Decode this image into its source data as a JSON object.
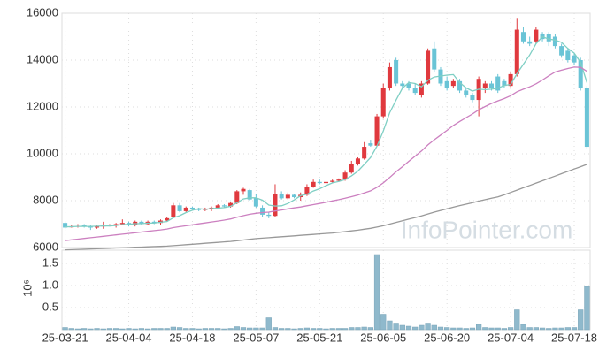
{
  "chart_data": {
    "type": "candlestick",
    "watermark": "InfoPointer.com",
    "grid": true,
    "up_color": "#e0393e",
    "down_color": "#6ac4d6",
    "categories": [
      "25-03-21",
      null,
      null,
      null,
      null,
      null,
      null,
      null,
      null,
      null,
      "25-04-04",
      null,
      null,
      null,
      null,
      null,
      null,
      null,
      null,
      null,
      "25-04-18",
      null,
      null,
      null,
      null,
      null,
      null,
      null,
      null,
      null,
      "25-05-07",
      null,
      null,
      null,
      null,
      null,
      null,
      null,
      null,
      null,
      "25-05-21",
      null,
      null,
      null,
      null,
      null,
      null,
      null,
      null,
      null,
      "25-06-05",
      null,
      null,
      null,
      null,
      null,
      null,
      null,
      null,
      null,
      "25-06-20",
      null,
      null,
      null,
      null,
      null,
      null,
      null,
      null,
      null,
      "25-07-04",
      null,
      null,
      null,
      null,
      null,
      null,
      null,
      null,
      null,
      "25-07-18",
      null,
      null
    ],
    "open": [
      7050,
      6900,
      6950,
      6980,
      6900,
      6850,
      6900,
      6950,
      6950,
      7000,
      7050,
      6950,
      7100,
      7000,
      7100,
      7050,
      7150,
      7300,
      7800,
      7550,
      7700,
      7650,
      7600,
      7650,
      7700,
      7800,
      7750,
      7900,
      8400,
      8450,
      8100,
      7700,
      7400,
      7350,
      8300,
      8100,
      8250,
      8150,
      8250,
      8600,
      8800,
      8750,
      8800,
      8850,
      8900,
      9200,
      9550,
      9800,
      10450,
      10350,
      11600,
      12800,
      14000,
      13000,
      13000,
      12800,
      12500,
      13000,
      14500,
      13600,
      13100,
      12900,
      13100,
      12700,
      12500,
      12300,
      12800,
      13000,
      13300,
      13100,
      12900,
      13400,
      15200,
      14800,
      14800,
      15100,
      15100,
      15000,
      14600,
      14400,
      14200,
      14000,
      12800
    ],
    "high": [
      7100,
      6950,
      7000,
      7000,
      6950,
      6950,
      7100,
      7000,
      7050,
      7200,
      7100,
      7150,
      7150,
      7150,
      7150,
      7200,
      7300,
      7900,
      7900,
      7750,
      7750,
      7700,
      7700,
      7750,
      7850,
      7850,
      7950,
      8450,
      8550,
      8500,
      8300,
      7800,
      7500,
      8700,
      8400,
      8350,
      8300,
      8350,
      8700,
      8900,
      8900,
      8850,
      8900,
      8950,
      9300,
      9700,
      9850,
      10500,
      10600,
      11700,
      13000,
      13900,
      14100,
      13100,
      13100,
      13000,
      13100,
      14500,
      14800,
      13700,
      13300,
      13200,
      13200,
      12800,
      12600,
      13300,
      13100,
      13100,
      13400,
      13200,
      13500,
      15800,
      15400,
      15000,
      15400,
      15200,
      15200,
      15100,
      14700,
      14500,
      14300,
      14100,
      12900
    ],
    "low": [
      6800,
      6850,
      6850,
      6850,
      6750,
      6800,
      6800,
      6900,
      6850,
      6950,
      6900,
      6900,
      6950,
      6950,
      7000,
      6950,
      7100,
      7250,
      7500,
      7500,
      7600,
      7550,
      7550,
      7550,
      7650,
      7700,
      7700,
      7850,
      8250,
      8000,
      7700,
      7300,
      7250,
      7300,
      8050,
      8050,
      8100,
      8000,
      8200,
      8550,
      8700,
      8700,
      8750,
      8800,
      8850,
      9150,
      9500,
      9750,
      10300,
      10300,
      11500,
      12700,
      12900,
      12800,
      12700,
      12500,
      12400,
      12950,
      13500,
      12900,
      12700,
      12800,
      12600,
      12400,
      12200,
      11600,
      12600,
      12700,
      12600,
      12800,
      12850,
      13300,
      14700,
      14600,
      14700,
      14800,
      14600,
      14500,
      14100,
      13900,
      13800,
      12700,
      10200
    ],
    "close": [
      6850,
      6900,
      6980,
      6900,
      6850,
      6900,
      6950,
      6980,
      7000,
      7050,
      6950,
      7100,
      7000,
      7100,
      7050,
      7150,
      7250,
      7800,
      7550,
      7700,
      7650,
      7600,
      7650,
      7700,
      7800,
      7750,
      7900,
      8400,
      8500,
      8050,
      7750,
      7400,
      7350,
      8300,
      8100,
      8250,
      8150,
      8250,
      8600,
      8800,
      8750,
      8800,
      8850,
      8900,
      9200,
      9550,
      9800,
      10300,
      10350,
      11600,
      12800,
      13700,
      13000,
      12900,
      12800,
      12600,
      13000,
      14400,
      13600,
      13000,
      12800,
      13100,
      12700,
      12500,
      12300,
      13200,
      13000,
      12800,
      12700,
      12900,
      13400,
      15300,
      14800,
      14700,
      15300,
      14900,
      14800,
      14600,
      14200,
      14000,
      13900,
      12800,
      10300
    ],
    "ylim": [
      6000,
      16000
    ],
    "yticks": [
      6000,
      8000,
      10000,
      12000,
      14000,
      16000
    ],
    "series": [
      {
        "color": "#7fcfc4",
        "values": [
          6880,
          6890,
          6900,
          6900,
          6900,
          6910,
          6920,
          6920,
          6940,
          6980,
          6990,
          7020,
          7020,
          7040,
          7040,
          7080,
          7110,
          7270,
          7360,
          7490,
          7590,
          7660,
          7630,
          7660,
          7680,
          7700,
          7760,
          7910,
          8070,
          8120,
          8120,
          8020,
          7810,
          7770,
          7780,
          7880,
          8030,
          8210,
          8270,
          8410,
          8510,
          8640,
          8760,
          8820,
          8900,
          9060,
          9260,
          9550,
          9840,
          10320,
          10970,
          11750,
          12290,
          12800,
          13040,
          13000,
          12860,
          13140,
          13280,
          13320,
          13360,
          13380,
          13040,
          12820,
          12680,
          12760,
          12740,
          12760,
          12800,
          12920,
          12960,
          13420,
          13820,
          14220,
          14700,
          15000,
          14900,
          14860,
          14760,
          14500,
          14300,
          13900,
          13040
        ]
      },
      {
        "color": "#cc80c0",
        "values": [
          6300,
          6330,
          6360,
          6390,
          6420,
          6450,
          6480,
          6510,
          6540,
          6570,
          6600,
          6630,
          6660,
          6690,
          6720,
          6750,
          6790,
          6850,
          6890,
          6930,
          6970,
          7010,
          7050,
          7090,
          7130,
          7170,
          7220,
          7290,
          7360,
          7420,
          7460,
          7490,
          7510,
          7560,
          7600,
          7650,
          7690,
          7730,
          7780,
          7830,
          7880,
          7930,
          7990,
          8040,
          8100,
          8170,
          8240,
          8330,
          8420,
          8570,
          8760,
          8990,
          9230,
          9450,
          9680,
          9900,
          10120,
          10380,
          10600,
          10800,
          11000,
          11210,
          11380,
          11540,
          11700,
          11880,
          12020,
          12150,
          12260,
          12360,
          12480,
          12650,
          12760,
          12860,
          12990,
          13150,
          13330,
          13490,
          13570,
          13640,
          13700,
          13690,
          13520
        ]
      },
      {
        "color": "#999999",
        "values": [
          5900,
          5910,
          5920,
          5930,
          5940,
          5950,
          5960,
          5970,
          5980,
          5990,
          6000,
          6010,
          6020,
          6030,
          6040,
          6050,
          6060,
          6080,
          6100,
          6120,
          6140,
          6160,
          6180,
          6200,
          6220,
          6240,
          6260,
          6290,
          6320,
          6350,
          6380,
          6400,
          6420,
          6440,
          6460,
          6480,
          6500,
          6520,
          6540,
          6560,
          6580,
          6600,
          6620,
          6650,
          6680,
          6710,
          6740,
          6780,
          6820,
          6870,
          6930,
          7000,
          7070,
          7140,
          7210,
          7280,
          7350,
          7430,
          7510,
          7580,
          7650,
          7720,
          7790,
          7850,
          7910,
          7980,
          8040,
          8100,
          8160,
          8250,
          8350,
          8450,
          8550,
          8650,
          8750,
          8850,
          8950,
          9050,
          9150,
          9250,
          9350,
          9450,
          9550
        ]
      }
    ],
    "volume": {
      "y_label": "10⁶",
      "color": "#8fb9cc",
      "ylim": [
        0,
        1.8
      ],
      "yticks": [
        0.5,
        {
          "value": 1,
          "label": "1.0"
        },
        1.5
      ],
      "values": [
        0.05,
        0.03,
        0.02,
        0.03,
        0.02,
        0.03,
        0.02,
        0.03,
        0.03,
        0.02,
        0.03,
        0.02,
        0.03,
        0.02,
        0.03,
        0.03,
        0.03,
        0.06,
        0.05,
        0.03,
        0.03,
        0.02,
        0.03,
        0.03,
        0.03,
        0.02,
        0.03,
        0.07,
        0.05,
        0.04,
        0.04,
        0.04,
        0.27,
        0.05,
        0.03,
        0.03,
        0.02,
        0.03,
        0.04,
        0.03,
        0.03,
        0.02,
        0.03,
        0.03,
        0.03,
        0.05,
        0.05,
        0.06,
        0.05,
        1.7,
        0.35,
        0.2,
        0.15,
        0.1,
        0.08,
        0.06,
        0.1,
        0.15,
        0.1,
        0.06,
        0.05,
        0.04,
        0.04,
        0.03,
        0.04,
        0.12,
        0.05,
        0.04,
        0.04,
        0.03,
        0.05,
        0.45,
        0.12,
        0.05,
        0.05,
        0.04,
        0.03,
        0.04,
        0.04,
        0.05,
        0.05,
        0.45,
        0.98
      ]
    }
  }
}
